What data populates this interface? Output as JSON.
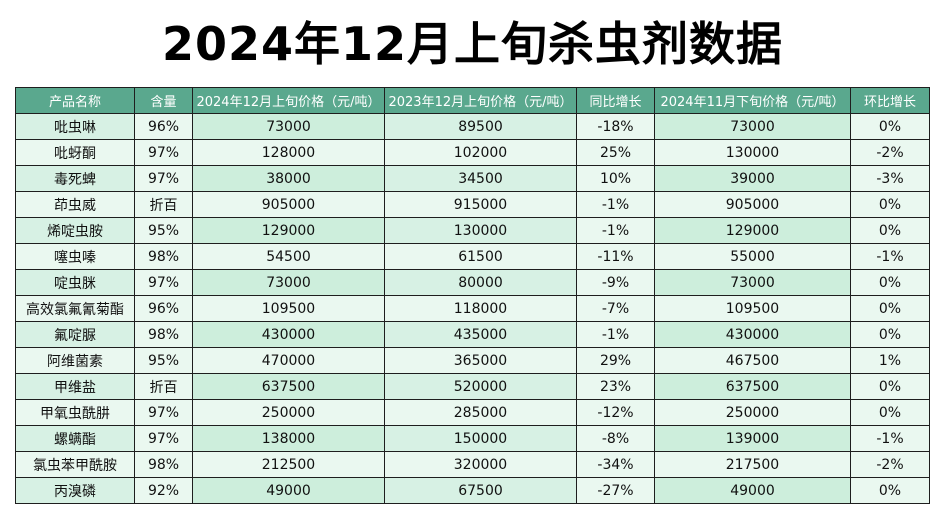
{
  "title": "2024年12月上旬杀虫剂数据",
  "colors": {
    "header_bg": "#5aa88e",
    "row_bg": "#eaf8f0",
    "row_alt_bg": "#cdeedc"
  },
  "table": {
    "headers": [
      "产品名称",
      "含量",
      "2024年12月上旬价格（元/吨）",
      "2023年12月上旬价格（元/吨）",
      "同比增长",
      "2024年11月下旬价格（元/吨）",
      "环比增长"
    ],
    "rows": [
      [
        "吡虫啉",
        "96%",
        "73000",
        "89500",
        "-18%",
        "73000",
        "0%"
      ],
      [
        "吡蚜酮",
        "97%",
        "128000",
        "102000",
        "25%",
        "130000",
        "-2%"
      ],
      [
        "毒死蜱",
        "97%",
        "38000",
        "34500",
        "10%",
        "39000",
        "-3%"
      ],
      [
        "茚虫威",
        "折百",
        "905000",
        "915000",
        "-1%",
        "905000",
        "0%"
      ],
      [
        "烯啶虫胺",
        "95%",
        "129000",
        "130000",
        "-1%",
        "129000",
        "0%"
      ],
      [
        "噻虫嗪",
        "98%",
        "54500",
        "61500",
        "-11%",
        "55000",
        "-1%"
      ],
      [
        "啶虫脒",
        "97%",
        "73000",
        "80000",
        "-9%",
        "73000",
        "0%"
      ],
      [
        "高效氯氟氰菊酯",
        "96%",
        "109500",
        "118000",
        "-7%",
        "109500",
        "0%"
      ],
      [
        "氟啶脲",
        "98%",
        "430000",
        "435000",
        "-1%",
        "430000",
        "0%"
      ],
      [
        "阿维菌素",
        "95%",
        "470000",
        "365000",
        "29%",
        "467500",
        "1%"
      ],
      [
        "甲维盐",
        "折百",
        "637500",
        "520000",
        "23%",
        "637500",
        "0%"
      ],
      [
        "甲氧虫酰肼",
        "97%",
        "250000",
        "285000",
        "-12%",
        "250000",
        "0%"
      ],
      [
        "螺螨酯",
        "97%",
        "138000",
        "150000",
        "-8%",
        "139000",
        "-1%"
      ],
      [
        "氯虫苯甲酰胺",
        "98%",
        "212500",
        "320000",
        "-34%",
        "217500",
        "-2%"
      ],
      [
        "丙溴磷",
        "92%",
        "49000",
        "67500",
        "-27%",
        "49000",
        "0%"
      ]
    ]
  }
}
